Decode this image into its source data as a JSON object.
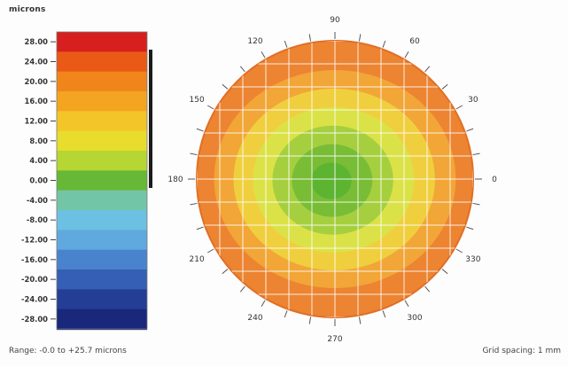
{
  "chart_data": {
    "type": "heatmap",
    "unit_label": "microns",
    "scale_ticks": [
      "28.00",
      "24.00",
      "20.00",
      "16.00",
      "12.00",
      "8.00",
      "4.00",
      "0.00",
      "-4.00",
      "-8.00",
      "-12.00",
      "-16.00",
      "-20.00",
      "-24.00",
      "-28.00"
    ],
    "scale_colors": [
      "#d71f1f",
      "#ea5a16",
      "#f0861b",
      "#f3a421",
      "#f4c528",
      "#e8dc2d",
      "#b6d634",
      "#66b836",
      "#73c5a8",
      "#6cc1e2",
      "#60a9de",
      "#4a83cd",
      "#345fb4",
      "#243e96",
      "#19287a"
    ],
    "scale_max": 28,
    "scale_min": -28,
    "angle_labels": [
      "90",
      "60",
      "30",
      "0",
      "330",
      "300",
      "270",
      "240",
      "210",
      "180",
      "150",
      "120"
    ],
    "radial_map_colors": [
      "#5cb431",
      "#78bd35",
      "#a6cf3f",
      "#dbe247",
      "#f0cf3e",
      "#f1a637",
      "#ec8432"
    ],
    "range_text": "Range: -0.0 to +25.7 microns",
    "grid_text": "Grid spacing: 1 mm"
  }
}
